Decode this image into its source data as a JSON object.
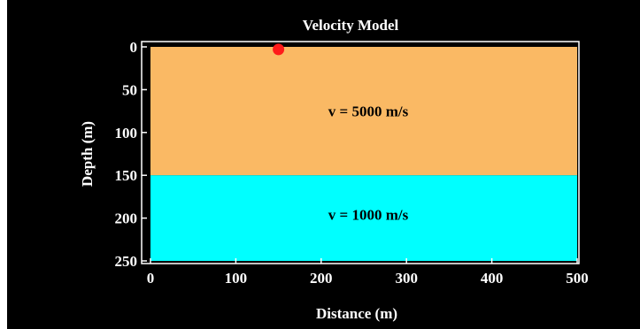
{
  "title": "Velocity Model",
  "xlabel": "Distance (m)",
  "ylabel": "Depth (m)",
  "xlim": [
    0,
    500
  ],
  "ylim": [
    0,
    250
  ],
  "y_inverted": true,
  "xticks": [
    "0",
    "100",
    "200",
    "300",
    "400",
    "500"
  ],
  "yticks": [
    "0",
    "50",
    "100",
    "150",
    "200",
    "250"
  ],
  "layers": [
    {
      "label": "v = 5000 m/s",
      "depth_top": 0,
      "depth_bottom": 150,
      "color": "#FAB964"
    },
    {
      "label": "v = 1000 m/s",
      "depth_top": 150,
      "depth_bottom": 250,
      "color": "#00FFFF"
    }
  ],
  "source": {
    "x": 150,
    "depth": 3,
    "color": "#FF1A1A"
  },
  "colors": {
    "background": "#000000",
    "frame": "#ffffff"
  }
}
